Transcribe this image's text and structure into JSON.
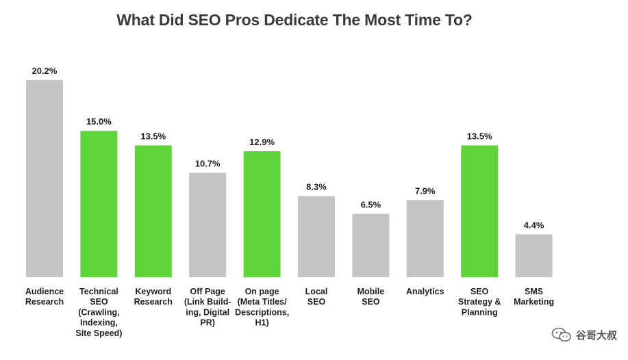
{
  "chart_data": {
    "type": "bar",
    "title": "What Did SEO Pros Dedicate The Most Time To?",
    "categories": [
      [
        "Audience",
        "Research"
      ],
      [
        "Technical",
        "SEO",
        "(Crawling,",
        "Indexing,",
        "Site Speed)"
      ],
      [
        "Keyword",
        "Research"
      ],
      [
        "Off Page",
        "(Link Build-",
        "ing, Digital",
        "PR)"
      ],
      [
        "On page",
        "(Meta Titles/",
        "Descriptions,",
        "H1)"
      ],
      [
        "Local",
        "SEO"
      ],
      [
        "Mobile",
        "SEO"
      ],
      [
        "Analytics"
      ],
      [
        "SEO",
        "Strategy &",
        "Planning"
      ],
      [
        "SMS",
        "Marketing"
      ]
    ],
    "values": [
      20.2,
      15.0,
      13.5,
      10.7,
      12.9,
      8.3,
      6.5,
      7.9,
      13.5,
      4.4
    ],
    "value_labels": [
      "20.2%",
      "15.0%",
      "13.5%",
      "10.7%",
      "12.9%",
      "8.3%",
      "6.5%",
      "7.9%",
      "13.5%",
      "4.4%"
    ],
    "highlighted": [
      false,
      true,
      true,
      false,
      true,
      false,
      false,
      false,
      true,
      false
    ],
    "colors": {
      "highlight": "#5ed43a",
      "default": "#c4c4c4"
    },
    "xlabel": "",
    "ylabel": "",
    "grid": false,
    "legend": "none"
  },
  "watermark": {
    "text": "谷哥大叔",
    "icon": "wechat-icon"
  }
}
